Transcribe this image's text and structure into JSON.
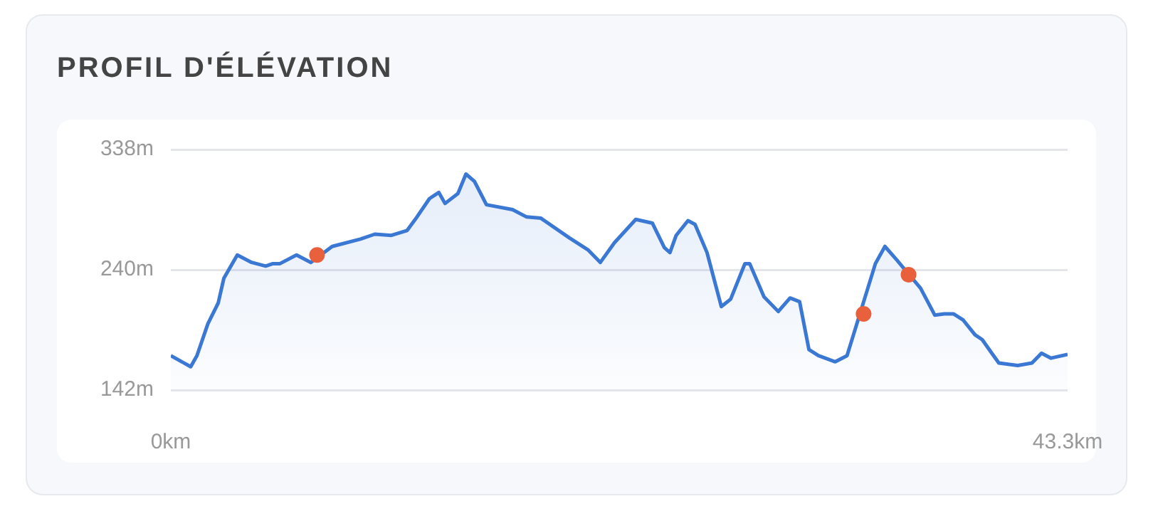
{
  "chart_data": {
    "type": "area",
    "title": "PROFIL D'ÉLÉVATION",
    "xlim": [
      0,
      43.3
    ],
    "xticks": [
      {
        "value": 0,
        "label": "0km"
      },
      {
        "value": 43.3,
        "label": "43.3km"
      }
    ],
    "ylim": [
      142,
      338
    ],
    "yticks": [
      {
        "value": 142,
        "label": "142m"
      },
      {
        "value": 240,
        "label": "240m"
      },
      {
        "value": 338,
        "label": "338m"
      }
    ],
    "grid": "y",
    "series": [
      {
        "color": "#3a78d4",
        "x": [
          0,
          0.96,
          1.26,
          1.79,
          2.29,
          2.56,
          3.21,
          3.9,
          4.58,
          4.93,
          5.27,
          6.07,
          6.76,
          7.79,
          9.16,
          9.85,
          10.65,
          11.41,
          11.8,
          12.49,
          12.94,
          13.24,
          13.86,
          14.25,
          14.66,
          15.24,
          16.5,
          17.18,
          17.87,
          19.24,
          20.16,
          20.74,
          21.42,
          22.45,
          23.25,
          23.83,
          24.1,
          24.4,
          24.97,
          25.31,
          25.89,
          26.58,
          27.03,
          27.72,
          27.95,
          28.64,
          29.33,
          29.9,
          30.36,
          30.81,
          31.27,
          32.08,
          32.65,
          34.02,
          34.48,
          35.05,
          36.2,
          36.89,
          37.34,
          37.8,
          38.26,
          38.83,
          39.18,
          39.64,
          39.98,
          40.89,
          41.58,
          42.04,
          42.5,
          43.3
        ],
        "values": [
          170,
          161,
          170,
          196,
          213,
          233,
          252,
          246,
          243,
          245,
          245,
          252,
          246,
          259,
          265,
          269,
          268,
          272,
          281,
          298,
          303,
          294,
          302,
          318,
          312,
          293,
          289,
          283,
          282,
          266,
          256,
          246,
          262,
          281,
          278,
          258,
          254,
          268,
          280,
          277,
          254,
          210,
          216,
          245,
          245,
          218,
          206,
          217,
          214,
          175,
          170,
          165,
          170,
          245,
          259,
          248,
          225,
          203,
          204,
          204,
          199,
          187,
          183,
          172,
          164,
          162,
          164,
          172,
          168,
          171
        ]
      },
      {
        "type": "scatter",
        "color": "#e8603c",
        "marker": "circle",
        "x": [
          7.06,
          33.45,
          35.62
        ],
        "values": [
          252,
          204,
          236
        ]
      }
    ]
  }
}
